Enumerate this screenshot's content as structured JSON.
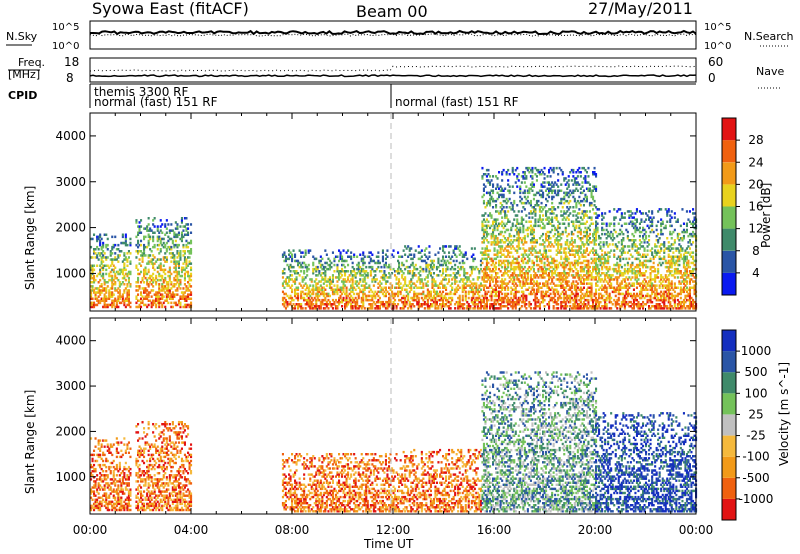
{
  "header": {
    "station": "Syowa East (fitACF)",
    "beam": "Beam 00",
    "date": "27/May/2011"
  },
  "top_panels": {
    "nsky_label": "N.Sky",
    "nsearch_label": "N.Search",
    "nsky_ticks": [
      "10^5",
      "10^0"
    ],
    "nsky_ticks_right": [
      "10^5",
      "10^0"
    ],
    "freq_label": "Freq.",
    "freq_unit": "[MHz]",
    "freq_ticks": [
      "18",
      "8"
    ],
    "nave_label": "Nave",
    "nave_ticks": [
      "60",
      "0"
    ],
    "cpid_label": "CPID",
    "cpid_segments": [
      {
        "line1": "themis 3300 RF",
        "line2": "normal (fast) 151 RF"
      },
      {
        "line1": "normal (fast) 151 RF",
        "line2": ""
      }
    ]
  },
  "colors": {
    "power": [
      "#0a1af0",
      "#2a55a6",
      "#3f8a6a",
      "#74c25a",
      "#e8d21e",
      "#f29a18",
      "#f0610f",
      "#e21313"
    ],
    "velocity": [
      "#e21313",
      "#f0610f",
      "#f29a18",
      "#f5b93c",
      "#c0c0c0",
      "#74c25a",
      "#3f8a6a",
      "#2a55a6",
      "#142fbf"
    ]
  },
  "chart_data": [
    {
      "type": "heatmap",
      "title": "Power",
      "ylabel": "Slant Range [km]",
      "xlabel": "Time UT",
      "x_ticks": [
        "00:00",
        "04:00",
        "08:00",
        "12:00",
        "16:00",
        "20:00",
        "00:00"
      ],
      "xlim_hours": [
        0,
        24
      ],
      "ylim_km": [
        180,
        4500
      ],
      "y_ticks": [
        "1000",
        "2000",
        "3000",
        "4000"
      ],
      "y_tick_values": [
        1000,
        2000,
        3000,
        4000
      ],
      "colorbar": {
        "label": "Power [dB]",
        "levels": [
          0,
          4,
          8,
          12,
          16,
          20,
          24,
          28,
          32
        ],
        "ticks": [
          "4",
          "8",
          "12",
          "16",
          "20",
          "24",
          "28"
        ]
      },
      "echo_regions": [
        {
          "t": [
            0.0,
            1.6
          ],
          "r": [
            250,
            1850
          ],
          "level": "mid"
        },
        {
          "t": [
            1.8,
            4.0
          ],
          "r": [
            250,
            2200
          ],
          "level": "mid-high"
        },
        {
          "t": [
            7.6,
            12.2
          ],
          "r": [
            220,
            1500
          ],
          "level": "high near ground, low above"
        },
        {
          "t": [
            12.2,
            15.5
          ],
          "r": [
            220,
            1600
          ],
          "level": "mid"
        },
        {
          "t": [
            15.5,
            20.0
          ],
          "r": [
            220,
            3300
          ],
          "level": "high near 300-800 km"
        },
        {
          "t": [
            20.0,
            24.0
          ],
          "r": [
            220,
            2400
          ],
          "level": "mid-high"
        }
      ]
    },
    {
      "type": "heatmap",
      "title": "Velocity",
      "ylabel": "Slant Range [km]",
      "xlabel": "Time UT",
      "x_ticks": [
        "00:00",
        "04:00",
        "08:00",
        "12:00",
        "16:00",
        "20:00",
        "00:00"
      ],
      "xlim_hours": [
        0,
        24
      ],
      "ylim_km": [
        180,
        4500
      ],
      "y_ticks": [
        "1000",
        "2000",
        "3000",
        "4000"
      ],
      "y_tick_values": [
        1000,
        2000,
        3000,
        4000
      ],
      "colorbar": {
        "label": "Velocity [m s^-1]",
        "levels": [
          -1500,
          -1000,
          -500,
          -100,
          -25,
          25,
          100,
          500,
          1000,
          1500
        ],
        "ticks": [
          "-1000",
          "-500",
          "-100",
          "-25",
          "25",
          "100",
          "500",
          "1000"
        ]
      },
      "echo_regions": [
        {
          "t": [
            0.0,
            1.6
          ],
          "r": [
            250,
            1850
          ],
          "level": "mixed, mostly negative"
        },
        {
          "t": [
            1.8,
            4.0
          ],
          "r": [
            250,
            2200
          ],
          "level": "negative"
        },
        {
          "t": [
            7.6,
            12.2
          ],
          "r": [
            220,
            1500
          ],
          "level": "negative / small"
        },
        {
          "t": [
            12.2,
            15.5
          ],
          "r": [
            220,
            1600
          ],
          "level": "negative"
        },
        {
          "t": [
            15.5,
            20.0
          ],
          "r": [
            220,
            3300
          ],
          "level": "mixed, positive at far range"
        },
        {
          "t": [
            20.0,
            24.0
          ],
          "r": [
            220,
            2400
          ],
          "level": "positive"
        }
      ]
    }
  ]
}
